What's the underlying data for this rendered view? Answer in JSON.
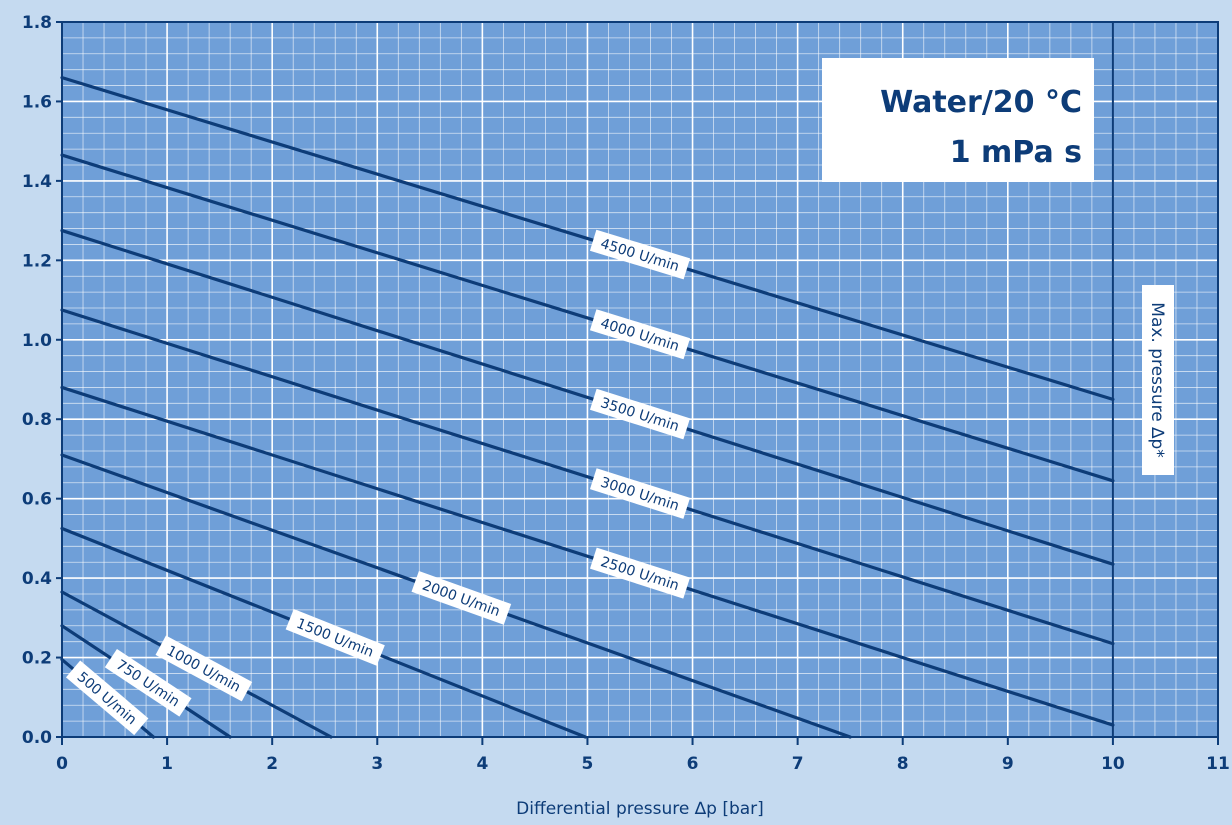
{
  "chart_data": {
    "type": "line",
    "xlabel": "Differential pressure ∆p [bar]",
    "ylabel": "",
    "xlim": [
      0,
      11
    ],
    "ylim": [
      0,
      1.8
    ],
    "x_ticks": [
      "0",
      "1",
      "2",
      "3",
      "4",
      "5",
      "6",
      "7",
      "8",
      "9",
      "10",
      "11"
    ],
    "y_ticks": [
      "0.0",
      "0.2",
      "0.4",
      "0.6",
      "0.8",
      "1.0",
      "1.2",
      "1.4",
      "1.6",
      "1.8"
    ],
    "grid": true,
    "legend_box": {
      "line1": "Water/20 °C",
      "line2": "1 mPa s"
    },
    "limit_line": {
      "x": 10,
      "label": "Max. pressure ∆p*"
    },
    "series": [
      {
        "name": "4500 U/min",
        "x": [
          0,
          10
        ],
        "y": [
          1.66,
          0.85
        ],
        "label_at_x": 5.5
      },
      {
        "name": "4000 U/min",
        "x": [
          0,
          10
        ],
        "y": [
          1.465,
          0.645
        ],
        "label_at_x": 5.5
      },
      {
        "name": "3500 U/min",
        "x": [
          0,
          10
        ],
        "y": [
          1.275,
          0.435
        ],
        "label_at_x": 5.5
      },
      {
        "name": "3000 U/min",
        "x": [
          0,
          10
        ],
        "y": [
          1.075,
          0.235
        ],
        "label_at_x": 5.5
      },
      {
        "name": "2500 U/min",
        "x": [
          0,
          10
        ],
        "y": [
          0.88,
          0.03
        ],
        "label_at_x": 5.5
      },
      {
        "name": "2000 U/min",
        "x": [
          0,
          7.5
        ],
        "y": [
          0.71,
          0.0
        ],
        "label_at_x": 3.8
      },
      {
        "name": "1500 U/min",
        "x": [
          0,
          4.98
        ],
        "y": [
          0.525,
          0.0
        ],
        "label_at_x": 2.6
      },
      {
        "name": "1000 U/min",
        "x": [
          0,
          2.56
        ],
        "y": [
          0.365,
          0.0
        ],
        "label_at_x": 1.35
      },
      {
        "name": "750 U/min",
        "x": [
          0,
          1.6
        ],
        "y": [
          0.28,
          0.0
        ],
        "label_at_x": 0.82
      },
      {
        "name": "500 U/min",
        "x": [
          0,
          0.87
        ],
        "y": [
          0.195,
          0.0
        ],
        "label_at_x": 0.43
      }
    ]
  }
}
